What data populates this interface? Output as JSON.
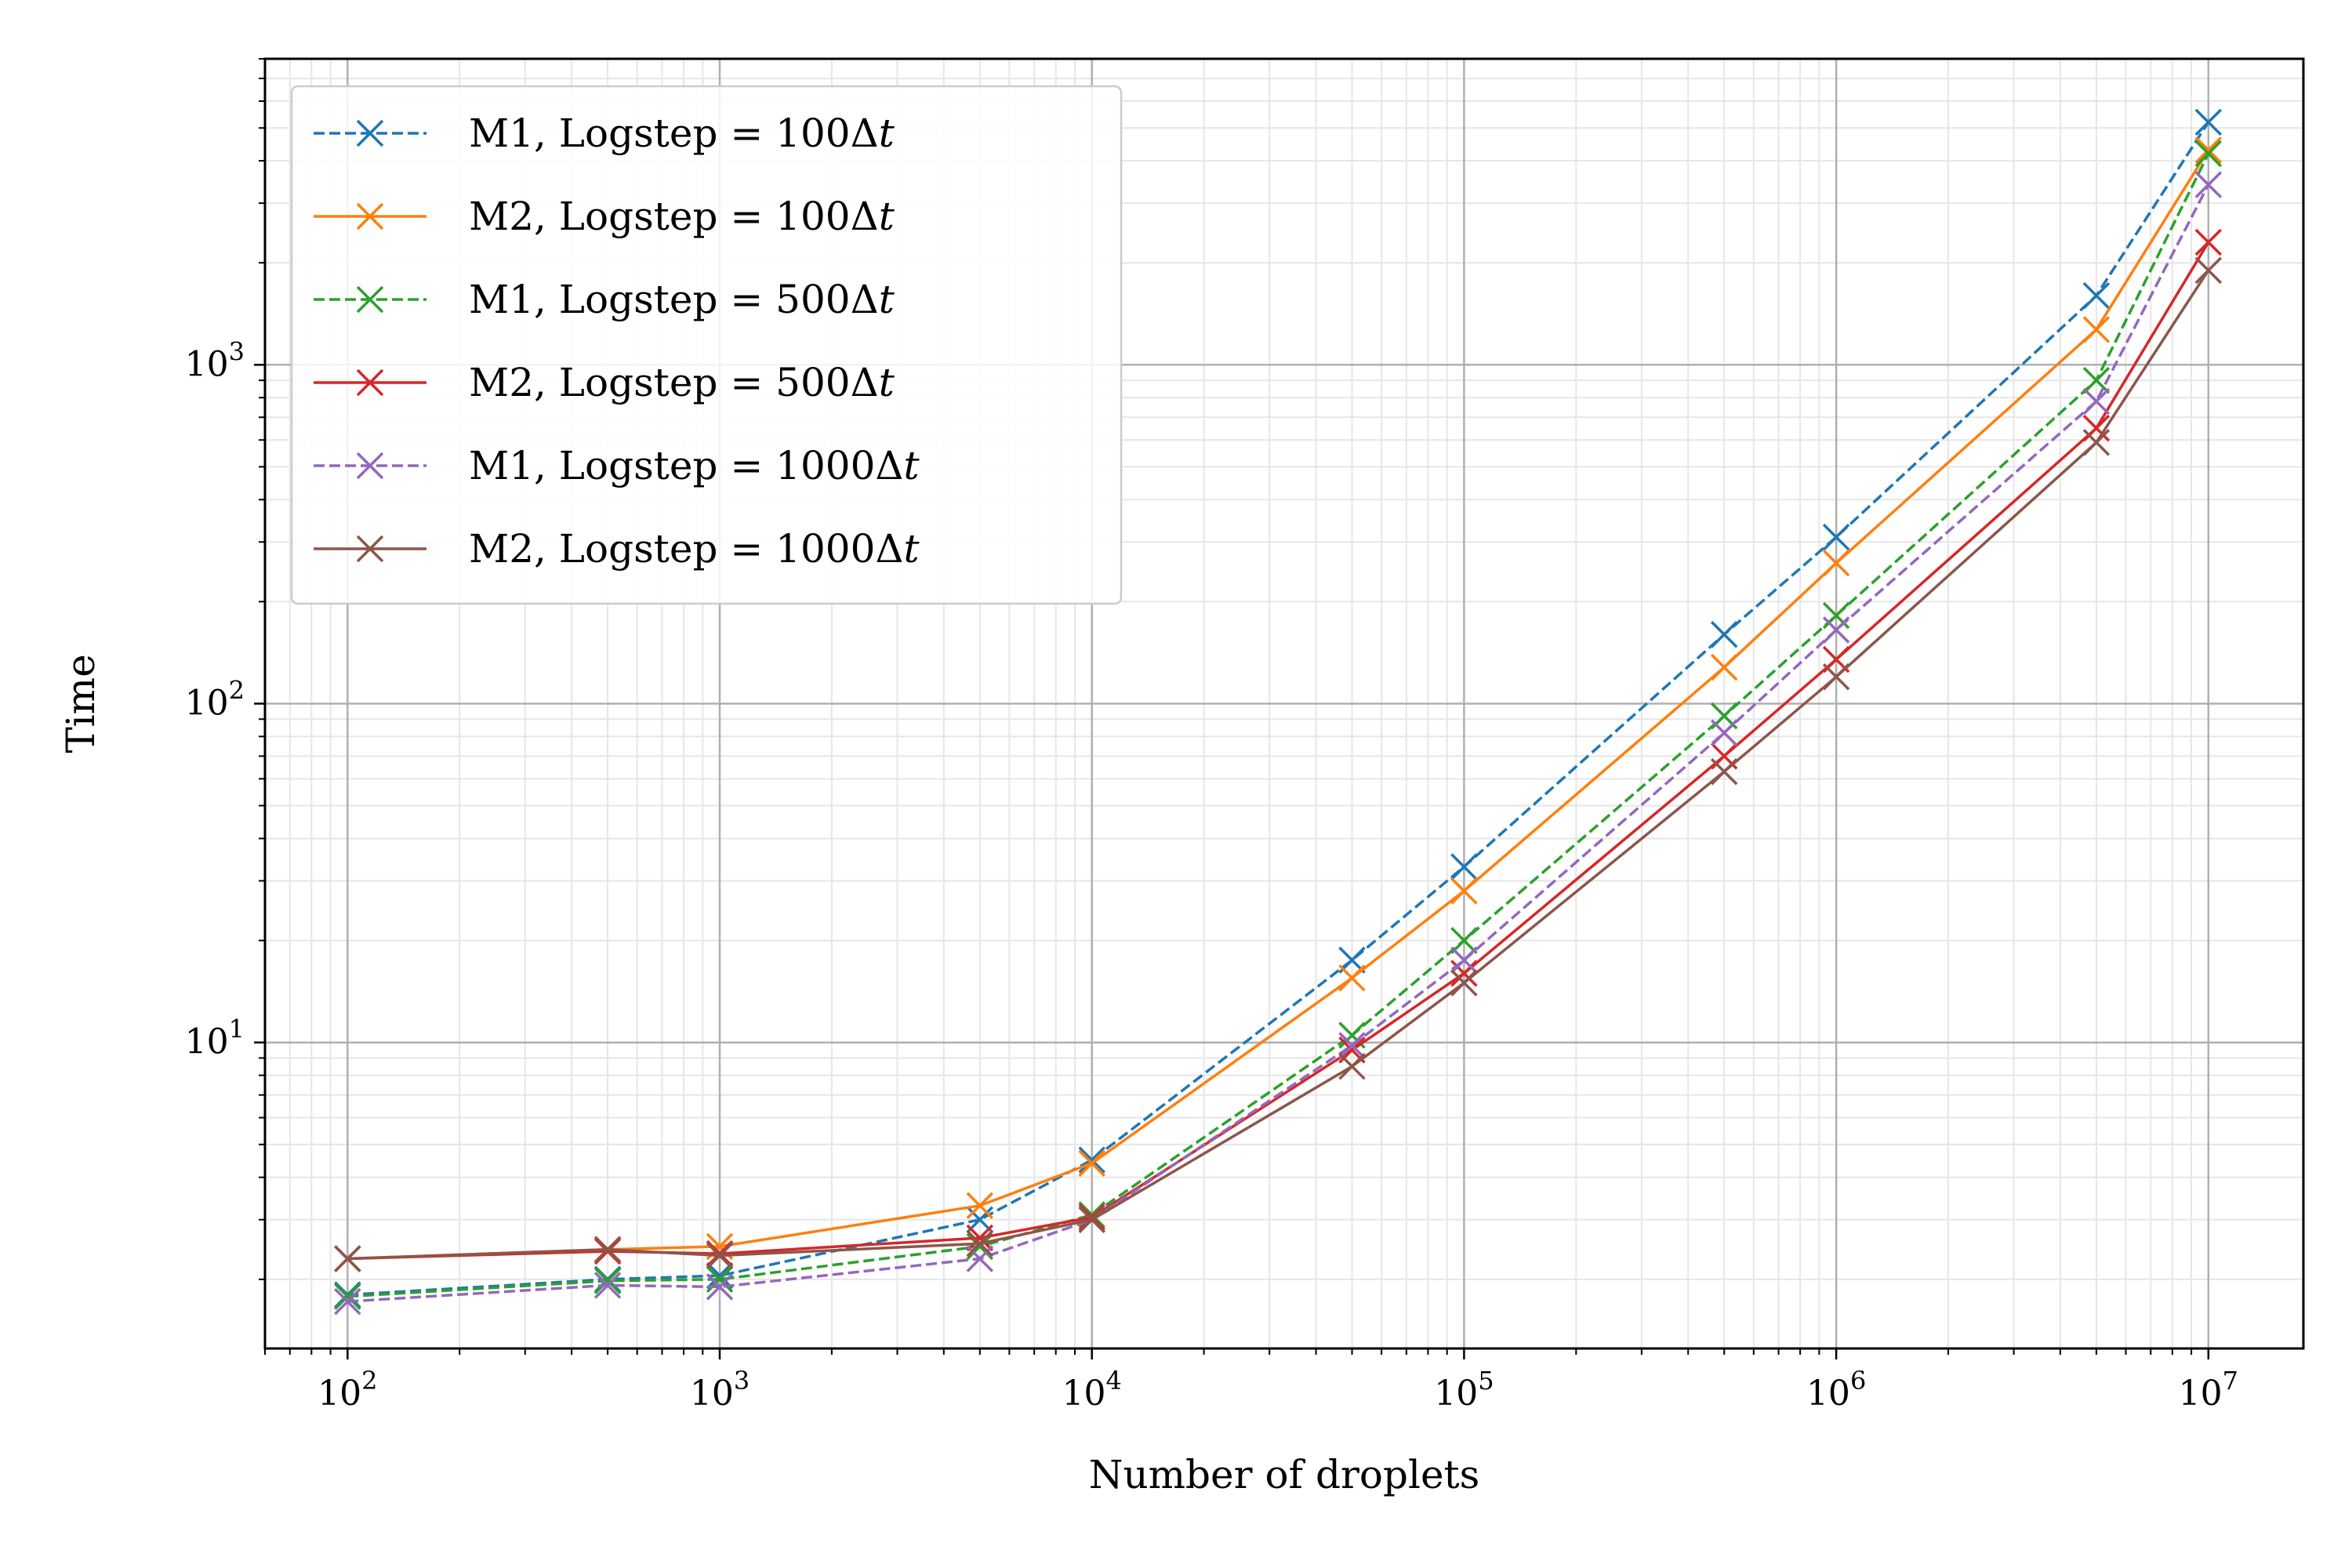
{
  "chart_data": {
    "type": "line",
    "title": "",
    "xlabel": "Number of droplets",
    "ylabel": "Time",
    "xscale": "log",
    "yscale": "log",
    "xlim": [
      60,
      18000000
    ],
    "ylim": [
      1.25,
      8000
    ],
    "x_ticks": [
      {
        "value": 100,
        "base": "10",
        "exp": "2"
      },
      {
        "value": 1000,
        "base": "10",
        "exp": "3"
      },
      {
        "value": 10000,
        "base": "10",
        "exp": "4"
      },
      {
        "value": 100000,
        "base": "10",
        "exp": "5"
      },
      {
        "value": 1000000,
        "base": "10",
        "exp": "6"
      },
      {
        "value": 10000000,
        "base": "10",
        "exp": "7"
      }
    ],
    "y_ticks": [
      {
        "value": 10,
        "base": "10",
        "exp": "1"
      },
      {
        "value": 100,
        "base": "10",
        "exp": "2"
      },
      {
        "value": 1000,
        "base": "10",
        "exp": "3"
      }
    ],
    "grid": true,
    "legend_position": "upper-left",
    "marker": "x",
    "x": [
      100,
      500,
      1000,
      5000,
      10000,
      50000,
      100000,
      500000,
      1000000,
      5000000,
      10000000
    ],
    "series": [
      {
        "label_prefix": "M1, Logstep ",
        "label_value": "= 100Δ",
        "label_var": "t",
        "color": "#1f77b4",
        "dash": "dashed",
        "values": [
          1.8,
          2.0,
          2.05,
          3.0,
          4.5,
          17.5,
          33,
          160,
          310,
          1600,
          5200
        ]
      },
      {
        "label_prefix": "M2, Logstep ",
        "label_value": "= 100Δ",
        "label_var": "t",
        "color": "#ff7f0e",
        "dash": "solid",
        "values": [
          2.3,
          2.45,
          2.5,
          3.3,
          4.4,
          15.5,
          28,
          128,
          260,
          1270,
          4300
        ]
      },
      {
        "label_prefix": "M1, Logstep ",
        "label_value": "= 500Δ",
        "label_var": "t",
        "color": "#2ca02c",
        "dash": "dashed",
        "values": [
          1.78,
          1.98,
          2.0,
          2.5,
          3.1,
          10.5,
          20,
          92,
          182,
          900,
          4200
        ]
      },
      {
        "label_prefix": "M2, Logstep ",
        "label_value": "= 500Δ",
        "label_var": "t",
        "color": "#d62728",
        "dash": "solid",
        "values": [
          2.3,
          2.42,
          2.38,
          2.65,
          3.05,
          9.5,
          16,
          70,
          135,
          650,
          2300
        ]
      },
      {
        "label_prefix": "M1, Logstep ",
        "label_value": "= 1000Δ",
        "label_var": "t",
        "color": "#9467bd",
        "dash": "dashed",
        "values": [
          1.72,
          1.92,
          1.9,
          2.3,
          3.0,
          9.8,
          17.5,
          82,
          165,
          780,
          3400
        ]
      },
      {
        "label_prefix": "M2, Logstep ",
        "label_value": "= 1000Δ",
        "label_var": "t",
        "color": "#8c564b",
        "dash": "solid",
        "values": [
          2.3,
          2.45,
          2.35,
          2.55,
          3.0,
          8.5,
          15,
          63,
          120,
          590,
          1900
        ]
      }
    ]
  }
}
